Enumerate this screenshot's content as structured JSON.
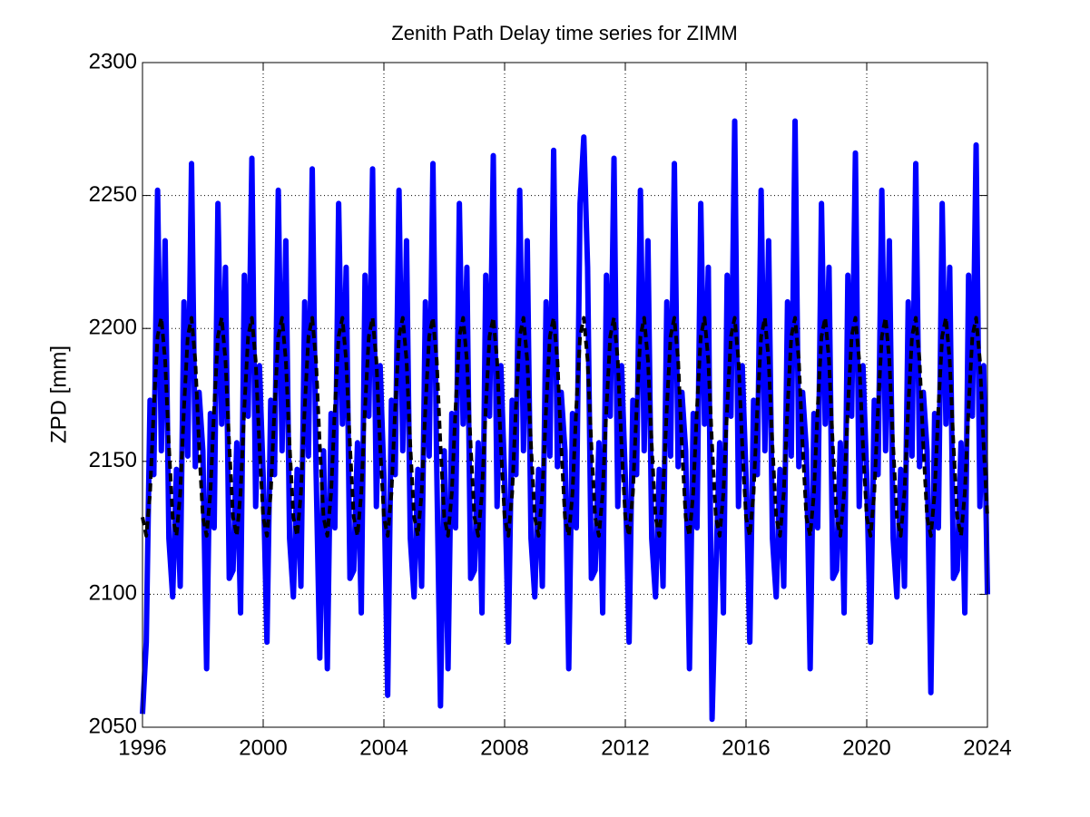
{
  "chart_data": {
    "type": "line",
    "title": "Zenith Path Delay time series for ZIMM",
    "y_label": "ZPD [mm]",
    "xlim": [
      1996,
      2024
    ],
    "xticks": [
      1996,
      2000,
      2004,
      2008,
      2012,
      2016,
      2020,
      2024
    ],
    "ylim": [
      2050,
      2300
    ],
    "yticks": [
      2050,
      2100,
      2150,
      2200,
      2250,
      2300
    ],
    "grid": true,
    "x": [
      1996,
      1996.125,
      1996.25,
      1996.375,
      1996.5,
      1996.625,
      1996.75,
      1996.875,
      1997,
      1997.125,
      1997.25,
      1997.375,
      1997.5,
      1997.625,
      1997.75,
      1997.875,
      1998,
      1998.125,
      1998.25,
      1998.375,
      1998.5,
      1998.625,
      1998.75,
      1998.875,
      1999,
      1999.125,
      1999.25,
      1999.375,
      1999.5,
      1999.625,
      1999.75,
      1999.875,
      2000,
      2000.125,
      2000.25,
      2000.375,
      2000.5,
      2000.625,
      2000.75,
      2000.875,
      2001,
      2001.125,
      2001.25,
      2001.375,
      2001.5,
      2001.625,
      2001.75,
      2001.875,
      2002,
      2002.125,
      2002.25,
      2002.375,
      2002.5,
      2002.625,
      2002.75,
      2002.875,
      2003,
      2003.125,
      2003.25,
      2003.375,
      2003.5,
      2003.625,
      2003.75,
      2003.875,
      2004,
      2004.125,
      2004.25,
      2004.375,
      2004.5,
      2004.625,
      2004.75,
      2004.875,
      2005,
      2005.125,
      2005.25,
      2005.375,
      2005.5,
      2005.625,
      2005.75,
      2005.875,
      2006,
      2006.125,
      2006.25,
      2006.375,
      2006.5,
      2006.625,
      2006.75,
      2006.875,
      2007,
      2007.125,
      2007.25,
      2007.375,
      2007.5,
      2007.625,
      2007.75,
      2007.875,
      2008,
      2008.125,
      2008.25,
      2008.375,
      2008.5,
      2008.625,
      2008.75,
      2008.875,
      2009,
      2009.125,
      2009.25,
      2009.375,
      2009.5,
      2009.625,
      2009.75,
      2009.875,
      2010,
      2010.125,
      2010.25,
      2010.375,
      2010.5,
      2010.625,
      2010.75,
      2010.875,
      2011,
      2011.125,
      2011.25,
      2011.375,
      2011.5,
      2011.625,
      2011.75,
      2011.875,
      2012,
      2012.125,
      2012.25,
      2012.375,
      2012.5,
      2012.625,
      2012.75,
      2012.875,
      2013,
      2013.125,
      2013.25,
      2013.375,
      2013.5,
      2013.625,
      2013.75,
      2013.875,
      2014,
      2014.125,
      2014.25,
      2014.375,
      2014.5,
      2014.625,
      2014.75,
      2014.875,
      2015,
      2015.125,
      2015.25,
      2015.375,
      2015.5,
      2015.625,
      2015.75,
      2015.875,
      2016,
      2016.125,
      2016.25,
      2016.375,
      2016.5,
      2016.625,
      2016.75,
      2016.875,
      2017,
      2017.125,
      2017.25,
      2017.375,
      2017.5,
      2017.625,
      2017.75,
      2017.875,
      2018,
      2018.125,
      2018.25,
      2018.375,
      2018.5,
      2018.625,
      2018.75,
      2018.875,
      2019,
      2019.125,
      2019.25,
      2019.375,
      2019.5,
      2019.625,
      2019.75,
      2019.875,
      2020,
      2020.125,
      2020.25,
      2020.375,
      2020.5,
      2020.625,
      2020.75,
      2020.875,
      2021,
      2021.125,
      2021.25,
      2021.375,
      2021.5,
      2021.625,
      2021.75,
      2021.875,
      2022,
      2022.125,
      2022.25,
      2022.375,
      2022.5,
      2022.625,
      2022.75,
      2022.875,
      2023,
      2023.125,
      2023.25,
      2023.375,
      2023.5,
      2023.625,
      2023.75,
      2023.875,
      2024
    ],
    "series": [
      {
        "color": "#0000ff",
        "dashed": false,
        "values": [
          2055,
          2082,
          2173,
          2145,
          2252,
          2154,
          2233,
          2121,
          2099,
          2147,
          2103,
          2210,
          2152,
          2262,
          2148,
          2176,
          2154,
          2072,
          2168,
          2125,
          2247,
          2164,
          2223,
          2106,
          2109,
          2157,
          2093,
          2220,
          2167,
          2264,
          2133,
          2186,
          2144,
          2082,
          2173,
          2145,
          2252,
          2154,
          2233,
          2121,
          2099,
          2147,
          2103,
          2210,
          2152,
          2260,
          2148,
          2076,
          2154,
          2072,
          2168,
          2125,
          2247,
          2164,
          2223,
          2106,
          2109,
          2157,
          2093,
          2220,
          2167,
          2260,
          2133,
          2186,
          2144,
          2062,
          2173,
          2145,
          2252,
          2154,
          2233,
          2121,
          2099,
          2147,
          2103,
          2210,
          2152,
          2262,
          2148,
          2058,
          2154,
          2072,
          2168,
          2125,
          2247,
          2164,
          2223,
          2106,
          2109,
          2157,
          2093,
          2220,
          2167,
          2265,
          2133,
          2186,
          2144,
          2082,
          2173,
          2145,
          2252,
          2154,
          2233,
          2121,
          2099,
          2147,
          2103,
          2210,
          2152,
          2267,
          2148,
          2176,
          2154,
          2072,
          2168,
          2125,
          2247,
          2272,
          2223,
          2106,
          2109,
          2157,
          2093,
          2220,
          2167,
          2264,
          2133,
          2186,
          2144,
          2082,
          2173,
          2145,
          2252,
          2154,
          2233,
          2121,
          2099,
          2147,
          2103,
          2210,
          2152,
          2262,
          2148,
          2176,
          2154,
          2072,
          2168,
          2125,
          2247,
          2164,
          2223,
          2053,
          2109,
          2157,
          2093,
          2220,
          2167,
          2278,
          2133,
          2186,
          2144,
          2082,
          2173,
          2145,
          2252,
          2154,
          2233,
          2121,
          2099,
          2147,
          2103,
          2210,
          2152,
          2278,
          2148,
          2176,
          2154,
          2072,
          2168,
          2125,
          2247,
          2164,
          2223,
          2106,
          2109,
          2157,
          2093,
          2220,
          2167,
          2266,
          2133,
          2186,
          2144,
          2082,
          2173,
          2145,
          2252,
          2154,
          2233,
          2121,
          2099,
          2147,
          2103,
          2210,
          2152,
          2262,
          2148,
          2176,
          2154,
          2063,
          2168,
          2125,
          2247,
          2164,
          2223,
          2106,
          2109,
          2157,
          2093,
          2220,
          2167,
          2269,
          2133,
          2186,
          2100
        ]
      },
      {
        "color": "#000000",
        "dashed": true,
        "values": [
          2129,
          2122,
          2138,
          2170,
          2197,
          2204,
          2188,
          2156,
          2129,
          2122,
          2138,
          2170,
          2197,
          2204,
          2188,
          2156,
          2129,
          2122,
          2138,
          2170,
          2197,
          2204,
          2188,
          2156,
          2129,
          2122,
          2138,
          2170,
          2197,
          2204,
          2188,
          2156,
          2129,
          2122,
          2138,
          2170,
          2197,
          2204,
          2188,
          2156,
          2129,
          2122,
          2138,
          2170,
          2197,
          2204,
          2188,
          2156,
          2129,
          2122,
          2138,
          2170,
          2197,
          2204,
          2188,
          2156,
          2129,
          2122,
          2138,
          2170,
          2197,
          2204,
          2188,
          2156,
          2129,
          2122,
          2138,
          2170,
          2197,
          2204,
          2188,
          2156,
          2129,
          2122,
          2138,
          2170,
          2197,
          2204,
          2188,
          2156,
          2129,
          2122,
          2138,
          2170,
          2197,
          2204,
          2188,
          2156,
          2129,
          2122,
          2138,
          2170,
          2197,
          2204,
          2188,
          2156,
          2129,
          2122,
          2138,
          2170,
          2197,
          2204,
          2188,
          2156,
          2129,
          2122,
          2138,
          2170,
          2197,
          2204,
          2188,
          2156,
          2129,
          2122,
          2138,
          2170,
          2197,
          2204,
          2188,
          2156,
          2129,
          2122,
          2138,
          2170,
          2197,
          2204,
          2188,
          2156,
          2129,
          2122,
          2138,
          2170,
          2197,
          2204,
          2188,
          2156,
          2129,
          2122,
          2138,
          2170,
          2197,
          2204,
          2188,
          2156,
          2129,
          2122,
          2138,
          2170,
          2197,
          2204,
          2188,
          2156,
          2129,
          2122,
          2138,
          2170,
          2197,
          2204,
          2188,
          2156,
          2129,
          2122,
          2138,
          2170,
          2197,
          2204,
          2188,
          2156,
          2129,
          2122,
          2138,
          2170,
          2197,
          2204,
          2188,
          2156,
          2129,
          2122,
          2138,
          2170,
          2197,
          2204,
          2188,
          2156,
          2129,
          2122,
          2138,
          2170,
          2197,
          2204,
          2188,
          2156,
          2129,
          2122,
          2138,
          2170,
          2197,
          2204,
          2188,
          2156,
          2129,
          2122,
          2138,
          2170,
          2197,
          2204,
          2188,
          2156,
          2129,
          2122,
          2138,
          2170,
          2197,
          2204,
          2188,
          2156,
          2129,
          2122,
          2138,
          2170,
          2197,
          2204,
          2188,
          2156,
          2129
        ]
      }
    ]
  }
}
